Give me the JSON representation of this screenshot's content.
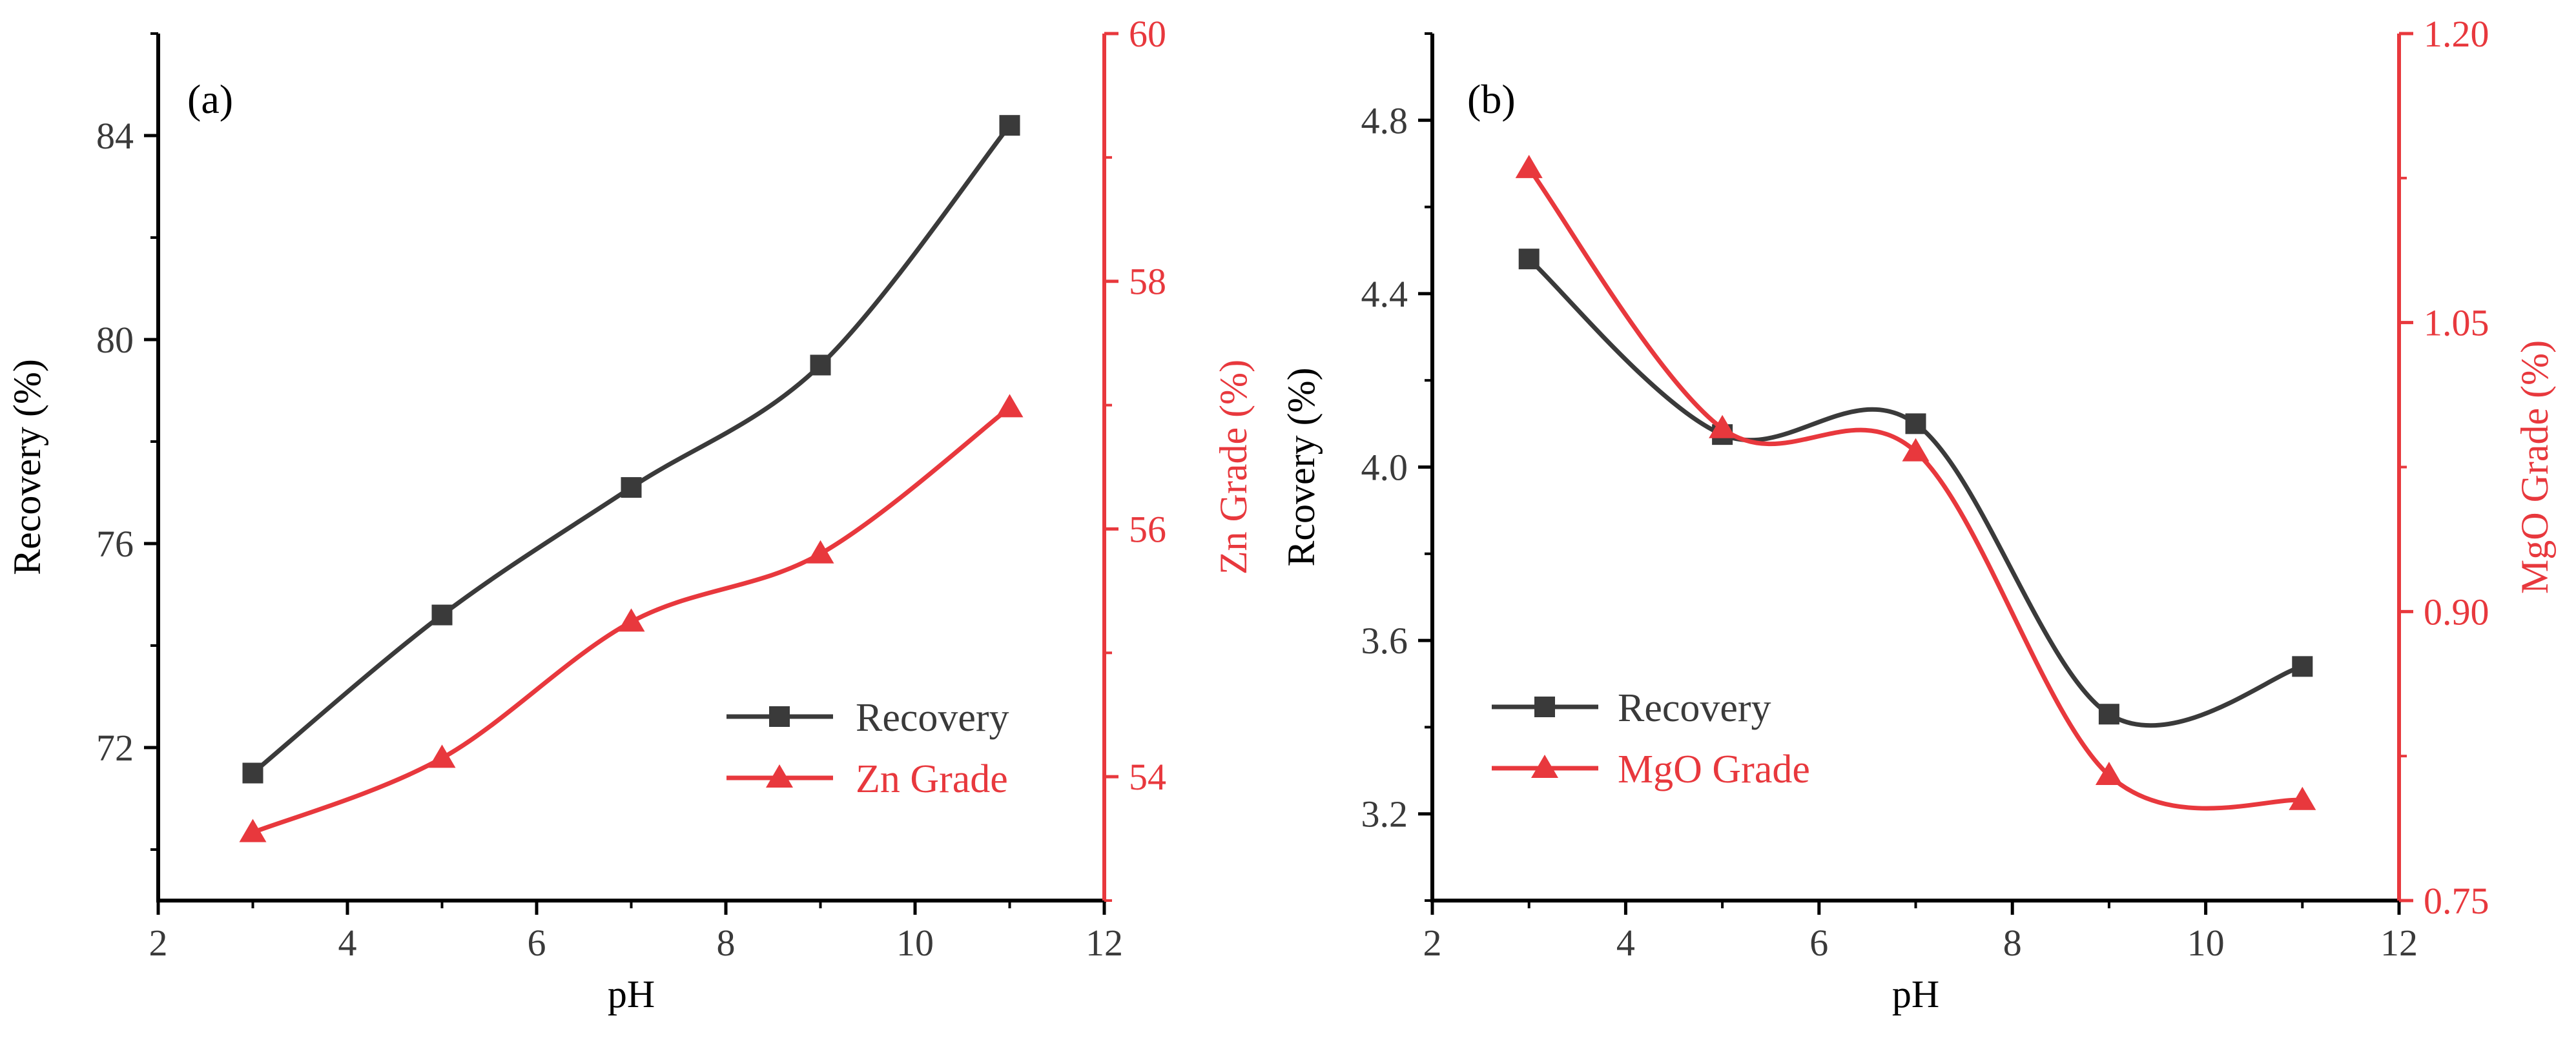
{
  "colors": {
    "recovery": "#3a3a3a",
    "grade": "#e8383d",
    "axis": "#000000",
    "tick_text": "#3a3a3a"
  },
  "chart_data": [
    {
      "type": "line",
      "panel_label": "(a)",
      "xlabel": "pH",
      "ylabel_left": "Recovery (%)",
      "ylabel_right": "Zn Grade (%)",
      "xlim": [
        2,
        12
      ],
      "ylim_left": [
        69,
        86
      ],
      "ylim_right": [
        53,
        60
      ],
      "xticks": [
        2,
        4,
        6,
        8,
        10,
        12
      ],
      "yticks_left": [
        72,
        76,
        80,
        84
      ],
      "yticks_right": [
        54,
        56,
        58,
        60
      ],
      "legend_position": "lower-right",
      "series": [
        {
          "name": "Recovery",
          "axis": "left",
          "marker": "square",
          "x": [
            3,
            5,
            7,
            9,
            11
          ],
          "values": [
            71.5,
            74.6,
            77.1,
            79.5,
            84.2
          ]
        },
        {
          "name": "Zn Grade",
          "axis": "right",
          "marker": "triangle",
          "x": [
            3,
            5,
            7,
            9,
            11
          ],
          "values": [
            53.55,
            54.15,
            55.25,
            55.8,
            56.98
          ]
        }
      ]
    },
    {
      "type": "line",
      "panel_label": "(b)",
      "xlabel": "pH",
      "ylabel_left": "Rcovery (%)",
      "ylabel_right": "MgO Grade (%)",
      "xlim": [
        2,
        12
      ],
      "ylim_left": [
        3.0,
        5.0
      ],
      "ylim_right": [
        0.75,
        1.2
      ],
      "xticks": [
        2,
        4,
        6,
        8,
        10,
        12
      ],
      "yticks_left": [
        3.2,
        3.6,
        4.0,
        4.4,
        4.8
      ],
      "yticks_right": [
        0.75,
        0.9,
        1.05,
        1.2
      ],
      "legend_position": "lower-left",
      "series": [
        {
          "name": "Recovery",
          "axis": "left",
          "marker": "square",
          "x": [
            3,
            5,
            7,
            9,
            11
          ],
          "values": [
            4.48,
            4.075,
            4.1,
            3.43,
            3.54
          ]
        },
        {
          "name": "MgO Grade",
          "axis": "right",
          "marker": "triangle",
          "x": [
            3,
            5,
            7,
            9,
            11
          ],
          "values": [
            1.13,
            0.995,
            0.983,
            0.815,
            0.802
          ]
        }
      ]
    }
  ]
}
